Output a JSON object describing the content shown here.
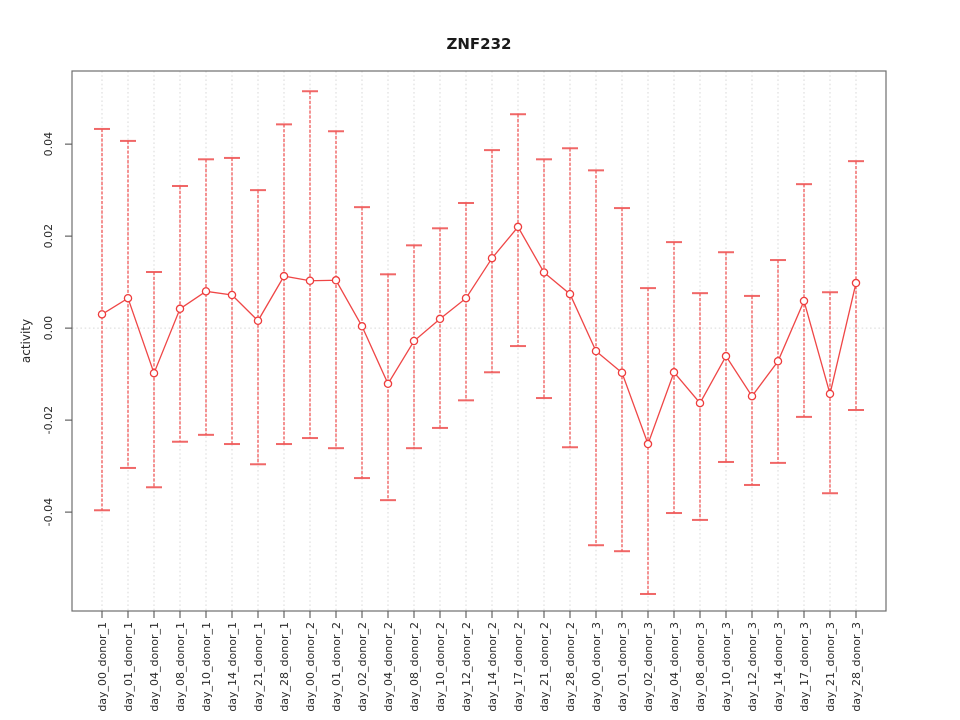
{
  "chart_data": {
    "type": "line",
    "title": "ZNF232",
    "xlabel": "",
    "ylabel": "activity",
    "legend": null,
    "grid": "vertical dotted gridline at every category; dotted horizontal reference line at y=0",
    "point_style": "open-circle with vertical error bars and caps, points connected by line segments",
    "ylim": [
      -0.0615,
      0.0559
    ],
    "yticks": [
      -0.04,
      -0.02,
      0.0,
      0.02,
      0.04
    ],
    "ytick_labels": [
      "-0.04",
      "-0.02",
      "0.00",
      "0.02",
      "0.04"
    ],
    "categories": [
      "day_00_donor_1",
      "day_01_donor_1",
      "day_04_donor_1",
      "day_08_donor_1",
      "day_10_donor_1",
      "day_14_donor_1",
      "day_21_donor_1",
      "day_28_donor_1",
      "day_00_donor_2",
      "day_01_donor_2",
      "day_02_donor_2",
      "day_04_donor_2",
      "day_08_donor_2",
      "day_10_donor_2",
      "day_12_donor_2",
      "day_14_donor_2",
      "day_17_donor_2",
      "day_21_donor_2",
      "day_28_donor_2",
      "day_00_donor_3",
      "day_01_donor_3",
      "day_02_donor_3",
      "day_04_donor_3",
      "day_08_donor_3",
      "day_10_donor_3",
      "day_12_donor_3",
      "day_14_donor_3",
      "day_17_donor_3",
      "day_21_donor_3",
      "day_28_donor_3"
    ],
    "series": [
      {
        "name": "activity",
        "values": [
          0.003,
          0.0065,
          -0.0098,
          0.0042,
          0.008,
          0.0072,
          0.0016,
          0.0113,
          0.0103,
          0.0104,
          0.0004,
          -0.0121,
          -0.0028,
          0.002,
          0.0065,
          0.0152,
          0.022,
          0.0121,
          0.0074,
          -0.005,
          -0.0097,
          -0.0252,
          -0.0096,
          -0.0163,
          -0.0061,
          -0.0148,
          -0.0072,
          0.0059,
          -0.0143,
          0.0098
        ],
        "upper": [
          0.0433,
          0.0407,
          0.0122,
          0.0309,
          0.0367,
          0.037,
          0.03,
          0.0443,
          0.0515,
          0.0428,
          0.0263,
          0.0117,
          0.018,
          0.0217,
          0.0272,
          0.0387,
          0.0465,
          0.0367,
          0.0391,
          0.0343,
          0.0261,
          0.0087,
          0.0187,
          0.0076,
          0.0165,
          0.007,
          0.0148,
          0.0313,
          0.0078,
          0.0363
        ],
        "lower": [
          -0.0396,
          -0.0304,
          -0.0346,
          -0.0247,
          -0.0232,
          -0.0252,
          -0.0296,
          -0.0252,
          -0.0239,
          -0.0261,
          -0.0326,
          -0.0374,
          -0.0261,
          -0.0217,
          -0.0157,
          -0.0096,
          -0.0039,
          -0.0152,
          -0.0259,
          -0.0472,
          -0.0485,
          -0.0578,
          -0.0402,
          -0.0417,
          -0.0291,
          -0.0341,
          -0.0293,
          -0.0193,
          -0.0359,
          -0.0178
        ]
      }
    ],
    "colors": {
      "series_red": "#ee3c3c",
      "cap_red": "#ef5757",
      "gridline": "#d9d9d9",
      "zero_line": "#d9d9d9",
      "axis_box": "#6e6e6e",
      "tick": "#555555",
      "text": "#2a2a2a",
      "background": "#ffffff"
    }
  }
}
